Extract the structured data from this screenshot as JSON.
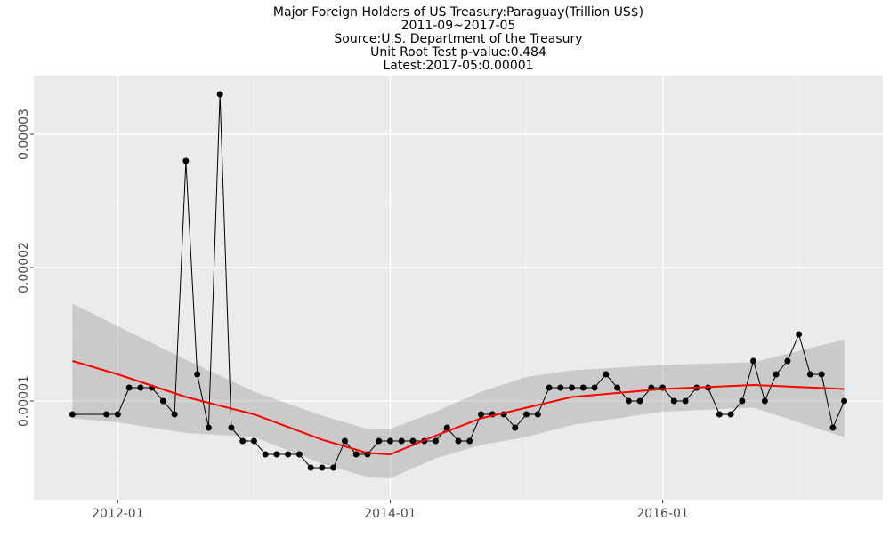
{
  "chart_data": {
    "type": "line",
    "title": [
      "Major Foreign Holders of US Treasury:Paraguay(Trillion US$)",
      "2011-09~2017-05",
      "Source:U.S. Department of the Treasury",
      "Unit Root Test p-value:0.484",
      "Latest:2017-05:0.00001"
    ],
    "x": [
      "2011-09",
      "2011-12",
      "2012-01",
      "2012-02",
      "2012-03",
      "2012-04",
      "2012-05",
      "2012-06",
      "2012-07",
      "2012-08",
      "2012-09",
      "2012-10",
      "2012-11",
      "2012-12",
      "2013-01",
      "2013-02",
      "2013-03",
      "2013-04",
      "2013-05",
      "2013-06",
      "2013-07",
      "2013-08",
      "2013-09",
      "2013-10",
      "2013-11",
      "2013-12",
      "2014-01",
      "2014-02",
      "2014-03",
      "2014-04",
      "2014-05",
      "2014-06",
      "2014-07",
      "2014-08",
      "2014-09",
      "2014-10",
      "2014-11",
      "2014-12",
      "2015-01",
      "2015-02",
      "2015-03",
      "2015-04",
      "2015-05",
      "2015-06",
      "2015-07",
      "2015-08",
      "2015-09",
      "2015-10",
      "2015-11",
      "2015-12",
      "2016-01",
      "2016-02",
      "2016-03",
      "2016-04",
      "2016-05",
      "2016-06",
      "2016-07",
      "2016-08",
      "2016-09",
      "2016-10",
      "2016-11",
      "2016-12",
      "2017-01",
      "2017-02",
      "2017-03",
      "2017-04",
      "2017-05"
    ],
    "series": [
      {
        "color": "#000000",
        "values": [
          9e-06,
          9e-06,
          9e-06,
          1.1e-05,
          1.1e-05,
          1.1e-05,
          1e-05,
          9e-06,
          2.8e-05,
          1.2e-05,
          8e-06,
          3.3e-05,
          8e-06,
          7e-06,
          7e-06,
          6e-06,
          6e-06,
          6e-06,
          6e-06,
          5e-06,
          5e-06,
          5e-06,
          7e-06,
          6e-06,
          6e-06,
          7e-06,
          7e-06,
          7e-06,
          7e-06,
          7e-06,
          7e-06,
          8e-06,
          7e-06,
          7e-06,
          9e-06,
          9e-06,
          9e-06,
          8e-06,
          9e-06,
          9e-06,
          1.1e-05,
          1.1e-05,
          1.1e-05,
          1.1e-05,
          1.1e-05,
          1.2e-05,
          1.1e-05,
          1e-05,
          1e-05,
          1.1e-05,
          1.1e-05,
          1e-05,
          1e-05,
          1.1e-05,
          1.1e-05,
          9e-06,
          9e-06,
          1e-05,
          1.3e-05,
          1e-05,
          1.2e-05,
          1.3e-05,
          1.5e-05,
          1.2e-05,
          1.2e-05,
          8e-06,
          1e-05
        ]
      }
    ],
    "smooth": {
      "color": "#ff0000",
      "x": [
        "2011-09",
        "2012-01",
        "2012-07",
        "2013-01",
        "2013-07",
        "2013-11",
        "2014-01",
        "2014-05",
        "2014-09",
        "2015-01",
        "2015-05",
        "2016-01",
        "2016-09",
        "2017-05"
      ],
      "values": [
        1.3e-05,
        1.2e-05,
        1.03e-05,
        9e-06,
        7.1e-06,
        6.1e-06,
        6e-06,
        7.4e-06,
        8.7e-06,
        9.5e-06,
        1.03e-05,
        1.09e-05,
        1.12e-05,
        1.09e-05
      ],
      "upper": [
        1.73e-05,
        1.56e-05,
        1.31e-05,
        1.07e-05,
        8.9e-06,
        7.9e-06,
        7.9e-06,
        9.2e-06,
        1.07e-05,
        1.18e-05,
        1.23e-05,
        1.27e-05,
        1.29e-05,
        1.46e-05
      ],
      "lower": [
        8.7e-06,
        8.4e-06,
        7.6e-06,
        7.3e-06,
        5.3e-06,
        4.3e-06,
        4.2e-06,
        5.7e-06,
        6.7e-06,
        7.3e-06,
        8.2e-06,
        9.2e-06,
        9.5e-06,
        7.3e-06
      ]
    },
    "ylim": [
      2.6e-06,
      3.44e-05
    ],
    "yticks": [
      1e-05,
      2e-05,
      3e-05
    ],
    "xticks": [
      "2012-01",
      "2014-01",
      "2016-01"
    ],
    "grid": true
  }
}
